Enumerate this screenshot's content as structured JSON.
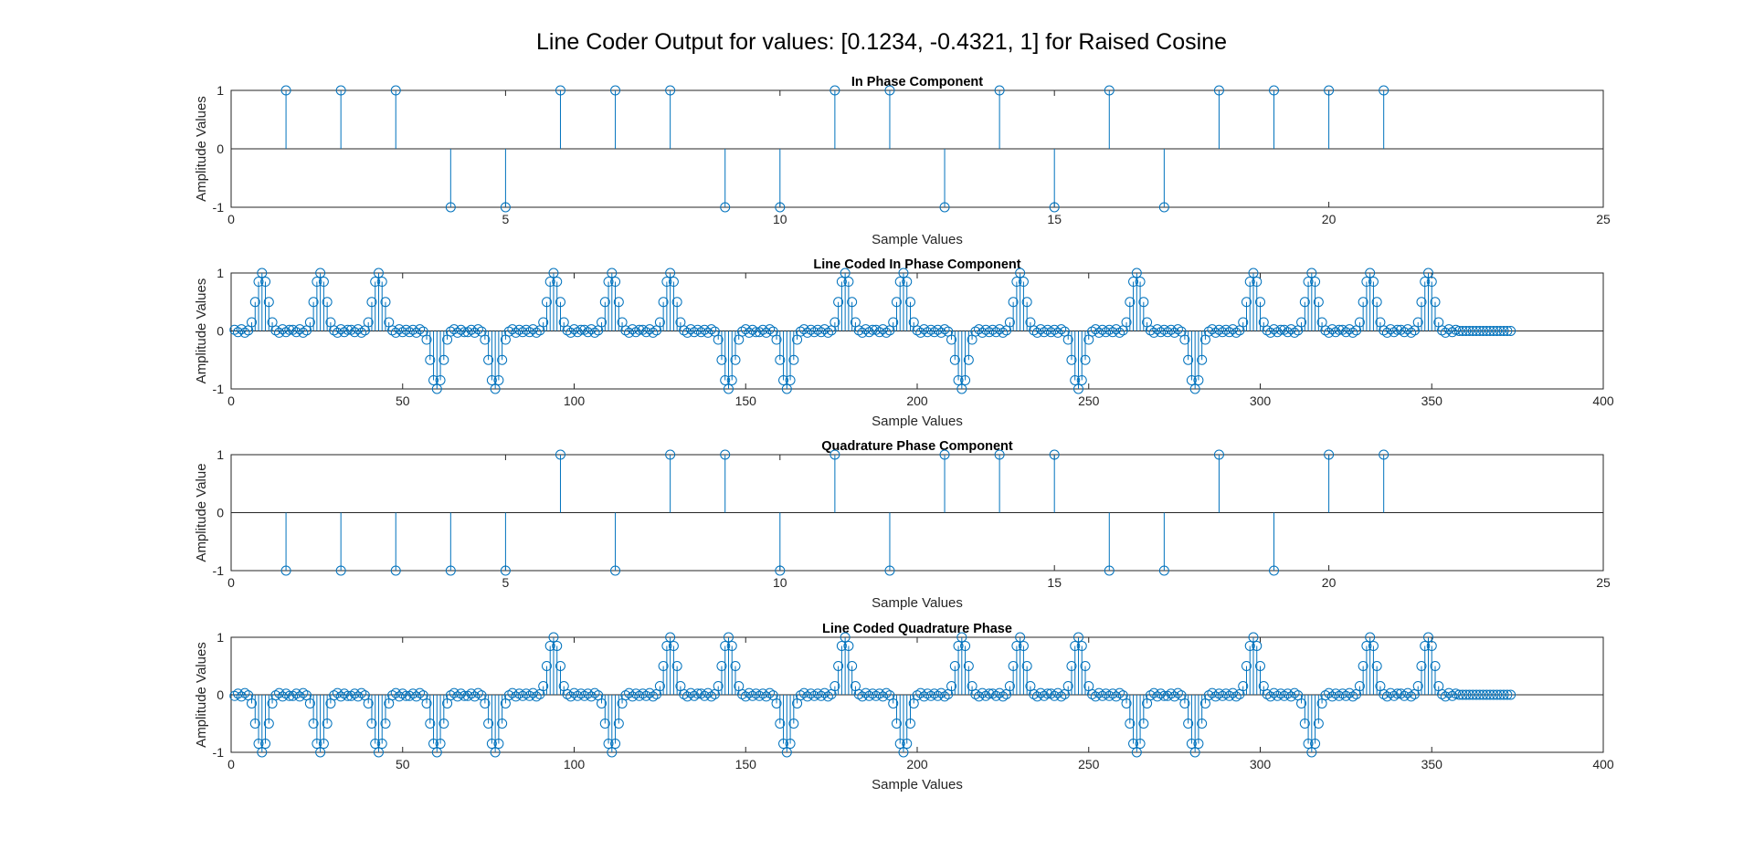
{
  "figure": {
    "suptitle": "Line Coder Output for values: [0.1234, -0.4321, 1] for Raised Cosine",
    "series_color": "#0072BD",
    "axes_color": "#262626"
  },
  "chart_data": [
    {
      "type": "stem",
      "title": "In Phase Component",
      "xlabel": "Sample Values",
      "ylabel": "Amplitude Values",
      "xlim": [
        0,
        25
      ],
      "ylim": [
        -1,
        1
      ],
      "xticks": [
        0,
        5,
        10,
        15,
        20,
        25
      ],
      "yticks": [
        -1,
        0,
        1
      ],
      "grid": false,
      "symbols": [
        1,
        1,
        1,
        -1,
        -1,
        1,
        1,
        1,
        -1,
        -1,
        1,
        1,
        -1,
        1,
        -1,
        1,
        -1,
        1,
        1,
        1,
        1
      ],
      "x": [
        1,
        2,
        3,
        4,
        5,
        6,
        7,
        8,
        9,
        10,
        11,
        12,
        13,
        14,
        15,
        16,
        17,
        18,
        19,
        20,
        21
      ],
      "y": [
        1,
        1,
        1,
        -1,
        -1,
        1,
        1,
        1,
        -1,
        -1,
        1,
        1,
        -1,
        1,
        -1,
        1,
        -1,
        1,
        1,
        1,
        1
      ]
    },
    {
      "type": "stem",
      "title": "Line Coded In Phase Component",
      "xlabel": "Sample Values",
      "ylabel": "Amplitude Values",
      "xlim": [
        0,
        400
      ],
      "ylim": [
        -1,
        1
      ],
      "xticks": [
        0,
        50,
        100,
        150,
        200,
        250,
        300,
        350,
        400
      ],
      "yticks": [
        -1,
        0,
        1
      ],
      "grid": false,
      "sample_count": 373,
      "pulse_shape": "raised cosine, peak 1 at symbol center, side values ±0.85, ±0.5, ±0.15 with ~0 between symbols",
      "symbol_values": [
        1,
        1,
        1,
        -1,
        -1,
        1,
        1,
        1,
        -1,
        -1,
        1,
        1,
        -1,
        1,
        -1,
        1,
        -1,
        1,
        1,
        1,
        1
      ],
      "pulse_center_x": [
        9,
        26,
        43,
        60,
        77,
        94,
        111,
        128,
        145,
        162,
        179,
        196,
        213,
        230,
        247,
        264,
        281,
        298,
        315,
        332,
        349
      ]
    },
    {
      "type": "stem",
      "title": "Quadrature Phase Component",
      "xlabel": "Sample Values",
      "ylabel": "Amplitude Value",
      "xlim": [
        0,
        25
      ],
      "ylim": [
        -1,
        1
      ],
      "xticks": [
        0,
        5,
        10,
        15,
        20,
        25
      ],
      "yticks": [
        -1,
        0,
        1
      ],
      "grid": false,
      "x": [
        1,
        2,
        3,
        4,
        5,
        6,
        7,
        8,
        9,
        10,
        11,
        12,
        13,
        14,
        15,
        16,
        17,
        18,
        19,
        20,
        21
      ],
      "y": [
        -1,
        -1,
        -1,
        -1,
        -1,
        1,
        -1,
        1,
        1,
        -1,
        1,
        -1,
        1,
        1,
        1,
        -1,
        -1,
        1,
        -1,
        1,
        1
      ]
    },
    {
      "type": "stem",
      "title": "Line Coded Quadrature Phase",
      "xlabel": "Sample Values",
      "ylabel": "Amplitude Values",
      "xlim": [
        0,
        400
      ],
      "ylim": [
        -1,
        1
      ],
      "xticks": [
        0,
        50,
        100,
        150,
        200,
        250,
        300,
        350,
        400
      ],
      "yticks": [
        -1,
        0,
        1
      ],
      "grid": false,
      "sample_count": 373,
      "pulse_shape": "raised cosine, peak 1 at symbol center, side values ±0.85, ±0.5, ±0.15 with ~0 between symbols",
      "symbol_values": [
        -1,
        -1,
        -1,
        -1,
        -1,
        1,
        -1,
        1,
        1,
        -1,
        1,
        -1,
        1,
        1,
        1,
        -1,
        -1,
        1,
        -1,
        1,
        1
      ],
      "pulse_center_x": [
        9,
        26,
        43,
        60,
        77,
        94,
        111,
        128,
        145,
        162,
        179,
        196,
        213,
        230,
        247,
        264,
        281,
        298,
        315,
        332,
        349
      ]
    }
  ]
}
